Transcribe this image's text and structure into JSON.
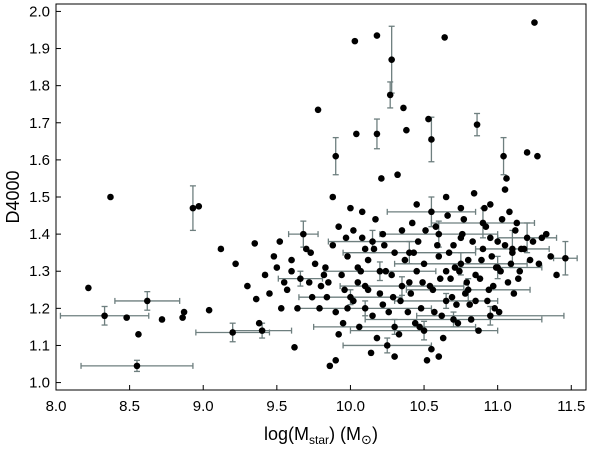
{
  "chart_data": {
    "type": "scatter",
    "title": "",
    "xlabel_main": "log(M",
    "xlabel_sub": "star",
    "xlabel_unit_open": ") (M",
    "xlabel_unit_sun": "⊙",
    "xlabel_unit_close": ")",
    "ylabel": "D4000",
    "xlim": [
      8.0,
      11.6
    ],
    "ylim": [
      0.98,
      2.02
    ],
    "xticks": [
      8.0,
      8.5,
      9.0,
      9.5,
      10.0,
      10.5,
      11.0,
      11.5
    ],
    "xtick_labels": [
      "8.0",
      "8.5",
      "9.0",
      "9.5",
      "10.0",
      "10.5",
      "11.0",
      "11.5"
    ],
    "yticks": [
      1.0,
      1.1,
      1.2,
      1.3,
      1.4,
      1.5,
      1.6,
      1.7,
      1.8,
      1.9,
      2.0
    ],
    "ytick_labels": [
      "1.0",
      "1.1",
      "1.2",
      "1.3",
      "1.4",
      "1.5",
      "1.6",
      "1.7",
      "1.8",
      "1.9",
      "2.0"
    ],
    "grid": false,
    "legend": "none",
    "marker_color": "#000000",
    "errorbar_color": "#6e7f7f",
    "points": [
      {
        "x": 8.22,
        "y": 1.255
      },
      {
        "x": 8.37,
        "y": 1.5
      },
      {
        "x": 8.33,
        "y": 1.18,
        "xerr": 0.3,
        "yerr": 0.025
      },
      {
        "x": 8.62,
        "y": 1.22,
        "xerr": 0.22,
        "yerr": 0.025
      },
      {
        "x": 8.55,
        "y": 1.045,
        "xerr": 0.38,
        "yerr": 0.015
      },
      {
        "x": 8.48,
        "y": 1.175
      },
      {
        "x": 8.56,
        "y": 1.13
      },
      {
        "x": 8.72,
        "y": 1.17
      },
      {
        "x": 8.86,
        "y": 1.175
      },
      {
        "x": 8.87,
        "y": 1.19
      },
      {
        "x": 8.93,
        "y": 1.47,
        "yerr": 0.06
      },
      {
        "x": 8.97,
        "y": 1.475
      },
      {
        "x": 9.04,
        "y": 1.195
      },
      {
        "x": 9.12,
        "y": 1.36
      },
      {
        "x": 9.2,
        "y": 1.135,
        "xerr": 0.25,
        "yerr": 0.025
      },
      {
        "x": 9.22,
        "y": 1.32
      },
      {
        "x": 9.3,
        "y": 1.26
      },
      {
        "x": 9.35,
        "y": 1.375
      },
      {
        "x": 9.36,
        "y": 1.225
      },
      {
        "x": 9.38,
        "y": 1.16
      },
      {
        "x": 9.4,
        "y": 1.14,
        "xerr": 0.2,
        "yerr": 0.02
      },
      {
        "x": 9.42,
        "y": 1.29
      },
      {
        "x": 9.45,
        "y": 1.24
      },
      {
        "x": 9.5,
        "y": 1.31
      },
      {
        "x": 9.52,
        "y": 1.38
      },
      {
        "x": 9.55,
        "y": 1.27
      },
      {
        "x": 9.57,
        "y": 1.25
      },
      {
        "x": 9.6,
        "y": 1.33
      },
      {
        "x": 9.62,
        "y": 1.095
      },
      {
        "x": 9.64,
        "y": 1.2
      },
      {
        "x": 9.66,
        "y": 1.28,
        "xerr": 0.15,
        "yerr": 0.02
      },
      {
        "x": 9.68,
        "y": 1.4,
        "xerr": 0.1,
        "yerr": 0.035
      },
      {
        "x": 9.7,
        "y": 1.36
      },
      {
        "x": 9.72,
        "y": 1.27
      },
      {
        "x": 9.74,
        "y": 1.23
      },
      {
        "x": 9.76,
        "y": 1.32
      },
      {
        "x": 9.78,
        "y": 1.735
      },
      {
        "x": 9.8,
        "y": 1.26
      },
      {
        "x": 9.82,
        "y": 1.29
      },
      {
        "x": 9.84,
        "y": 1.23
      },
      {
        "x": 9.86,
        "y": 1.045
      },
      {
        "x": 9.88,
        "y": 1.5
      },
      {
        "x": 9.9,
        "y": 1.06
      },
      {
        "x": 9.9,
        "y": 1.61,
        "yerr": 0.05
      },
      {
        "x": 9.92,
        "y": 1.42
      },
      {
        "x": 9.94,
        "y": 1.29
      },
      {
        "x": 9.96,
        "y": 1.25
      },
      {
        "x": 9.98,
        "y": 1.2
      },
      {
        "x": 10.0,
        "y": 1.47
      },
      {
        "x": 10.02,
        "y": 1.22
      },
      {
        "x": 10.03,
        "y": 1.92
      },
      {
        "x": 10.04,
        "y": 1.67
      },
      {
        "x": 10.05,
        "y": 1.31
      },
      {
        "x": 10.06,
        "y": 1.15
      },
      {
        "x": 10.08,
        "y": 1.39
      },
      {
        "x": 10.1,
        "y": 1.26
      },
      {
        "x": 10.12,
        "y": 1.33
      },
      {
        "x": 10.14,
        "y": 1.08
      },
      {
        "x": 10.16,
        "y": 1.36
      },
      {
        "x": 10.18,
        "y": 1.935
      },
      {
        "x": 10.18,
        "y": 1.67,
        "yerr": 0.04
      },
      {
        "x": 10.2,
        "y": 1.24
      },
      {
        "x": 10.21,
        "y": 1.55
      },
      {
        "x": 10.22,
        "y": 1.4
      },
      {
        "x": 10.24,
        "y": 1.3
      },
      {
        "x": 10.26,
        "y": 1.19
      },
      {
        "x": 10.27,
        "y": 1.775,
        "yerr": 0.035
      },
      {
        "x": 10.28,
        "y": 1.87,
        "yerr": 0.09
      },
      {
        "x": 10.3,
        "y": 1.35
      },
      {
        "x": 10.32,
        "y": 1.56
      },
      {
        "x": 10.34,
        "y": 1.22
      },
      {
        "x": 10.36,
        "y": 1.74
      },
      {
        "x": 10.38,
        "y": 1.68
      },
      {
        "x": 10.4,
        "y": 1.27
      },
      {
        "x": 10.42,
        "y": 1.43
      },
      {
        "x": 10.44,
        "y": 1.16
      },
      {
        "x": 10.46,
        "y": 1.38
      },
      {
        "x": 10.48,
        "y": 1.2
      },
      {
        "x": 10.5,
        "y": 1.32
      },
      {
        "x": 10.52,
        "y": 1.06
      },
      {
        "x": 10.53,
        "y": 1.71
      },
      {
        "x": 10.55,
        "y": 1.655,
        "yerr": 0.06
      },
      {
        "x": 10.56,
        "y": 1.25
      },
      {
        "x": 10.58,
        "y": 1.42
      },
      {
        "x": 10.6,
        "y": 1.34
      },
      {
        "x": 10.62,
        "y": 1.18
      },
      {
        "x": 10.64,
        "y": 1.93
      },
      {
        "x": 10.66,
        "y": 1.45
      },
      {
        "x": 10.68,
        "y": 1.28
      },
      {
        "x": 10.7,
        "y": 1.37
      },
      {
        "x": 10.72,
        "y": 1.21
      },
      {
        "x": 10.74,
        "y": 1.3
      },
      {
        "x": 10.76,
        "y": 1.4
      },
      {
        "x": 10.78,
        "y": 1.24
      },
      {
        "x": 10.8,
        "y": 1.33
      },
      {
        "x": 10.82,
        "y": 1.17
      },
      {
        "x": 10.84,
        "y": 1.51
      },
      {
        "x": 10.86,
        "y": 1.695,
        "yerr": 0.03
      },
      {
        "x": 10.88,
        "y": 1.28
      },
      {
        "x": 10.9,
        "y": 1.36
      },
      {
        "x": 10.92,
        "y": 1.42
      },
      {
        "x": 10.94,
        "y": 1.25
      },
      {
        "x": 10.96,
        "y": 1.34
      },
      {
        "x": 10.98,
        "y": 1.2
      },
      {
        "x": 11.0,
        "y": 1.38
      },
      {
        "x": 11.02,
        "y": 1.3
      },
      {
        "x": 11.04,
        "y": 1.61,
        "yerr": 0.05
      },
      {
        "x": 11.06,
        "y": 1.55
      },
      {
        "x": 11.08,
        "y": 1.46
      },
      {
        "x": 11.1,
        "y": 1.35
      },
      {
        "x": 11.12,
        "y": 1.41
      },
      {
        "x": 11.14,
        "y": 1.28
      },
      {
        "x": 11.16,
        "y": 1.36
      },
      {
        "x": 11.2,
        "y": 1.62
      },
      {
        "x": 11.22,
        "y": 1.33
      },
      {
        "x": 11.25,
        "y": 1.97
      },
      {
        "x": 11.27,
        "y": 1.61
      },
      {
        "x": 11.3,
        "y": 1.39
      },
      {
        "x": 11.36,
        "y": 1.34
      },
      {
        "x": 11.4,
        "y": 1.29
      },
      {
        "x": 11.46,
        "y": 1.335,
        "xerr": 0.08,
        "yerr": 0.045
      },
      {
        "x": 10.1,
        "y": 1.2,
        "xerr": 0.45,
        "yerr": 0.02
      },
      {
        "x": 10.3,
        "y": 1.15,
        "xerr": 0.55,
        "yerr": 0.02
      },
      {
        "x": 10.5,
        "y": 1.14,
        "xerr": 0.5,
        "yerr": 0.025
      },
      {
        "x": 10.7,
        "y": 1.17,
        "xerr": 0.6,
        "yerr": 0.02
      },
      {
        "x": 10.4,
        "y": 1.35,
        "xerr": 0.45,
        "yerr": 0.03
      },
      {
        "x": 10.6,
        "y": 1.4,
        "xerr": 0.4,
        "yerr": 0.035
      },
      {
        "x": 10.9,
        "y": 1.43,
        "xerr": 0.35,
        "yerr": 0.04
      },
      {
        "x": 11.0,
        "y": 1.31,
        "xerr": 0.3,
        "yerr": 0.03
      },
      {
        "x": 10.8,
        "y": 1.25,
        "xerr": 0.42,
        "yerr": 0.03
      },
      {
        "x": 10.2,
        "y": 1.3,
        "xerr": 0.38,
        "yerr": 0.025
      },
      {
        "x": 10.15,
        "y": 1.38,
        "xerr": 0.3,
        "yerr": 0.03
      },
      {
        "x": 10.65,
        "y": 1.22,
        "xerr": 0.35,
        "yerr": 0.02
      },
      {
        "x": 10.95,
        "y": 1.18,
        "xerr": 0.5,
        "yerr": 0.025
      },
      {
        "x": 11.1,
        "y": 1.36,
        "xerr": 0.25,
        "yerr": 0.05
      },
      {
        "x": 10.55,
        "y": 1.46,
        "xerr": 0.3,
        "yerr": 0.04
      },
      {
        "x": 10.35,
        "y": 1.26,
        "xerr": 0.42,
        "yerr": 0.025
      },
      {
        "x": 10.25,
        "y": 1.1,
        "xerr": 0.3,
        "yerr": 0.02
      },
      {
        "x": 10.0,
        "y": 1.23,
        "xerr": 0.35,
        "yerr": 0.02
      },
      {
        "x": 11.2,
        "y": 1.39,
        "xerr": 0.2,
        "yerr": 0.04
      },
      {
        "x": 10.75,
        "y": 1.32,
        "xerr": 0.45,
        "yerr": 0.03
      },
      {
        "x": 9.95,
        "y": 1.16
      },
      {
        "x": 10.05,
        "y": 1.27
      },
      {
        "x": 10.1,
        "y": 1.36
      },
      {
        "x": 10.15,
        "y": 1.18
      },
      {
        "x": 10.22,
        "y": 1.21
      },
      {
        "x": 10.28,
        "y": 1.29
      },
      {
        "x": 10.33,
        "y": 1.13
      },
      {
        "x": 10.37,
        "y": 1.33
      },
      {
        "x": 10.41,
        "y": 1.24
      },
      {
        "x": 10.45,
        "y": 1.3
      },
      {
        "x": 10.47,
        "y": 1.15
      },
      {
        "x": 10.51,
        "y": 1.41
      },
      {
        "x": 10.54,
        "y": 1.26
      },
      {
        "x": 10.57,
        "y": 1.19
      },
      {
        "x": 10.61,
        "y": 1.28
      },
      {
        "x": 10.63,
        "y": 1.12
      },
      {
        "x": 10.67,
        "y": 1.35
      },
      {
        "x": 10.69,
        "y": 1.23
      },
      {
        "x": 10.71,
        "y": 1.31
      },
      {
        "x": 10.73,
        "y": 1.16
      },
      {
        "x": 10.77,
        "y": 1.44
      },
      {
        "x": 10.79,
        "y": 1.27
      },
      {
        "x": 10.81,
        "y": 1.21
      },
      {
        "x": 10.83,
        "y": 1.38
      },
      {
        "x": 10.85,
        "y": 1.29
      },
      {
        "x": 10.87,
        "y": 1.14
      },
      {
        "x": 10.89,
        "y": 1.33
      },
      {
        "x": 10.91,
        "y": 1.47
      },
      {
        "x": 10.93,
        "y": 1.22
      },
      {
        "x": 10.95,
        "y": 1.39
      },
      {
        "x": 10.97,
        "y": 1.26
      },
      {
        "x": 10.99,
        "y": 1.31
      },
      {
        "x": 11.01,
        "y": 1.19
      },
      {
        "x": 11.03,
        "y": 1.44
      },
      {
        "x": 11.05,
        "y": 1.37
      },
      {
        "x": 11.07,
        "y": 1.27
      },
      {
        "x": 11.09,
        "y": 1.32
      },
      {
        "x": 11.11,
        "y": 1.24
      },
      {
        "x": 11.13,
        "y": 1.43
      },
      {
        "x": 11.15,
        "y": 1.3
      },
      {
        "x": 11.18,
        "y": 1.36
      },
      {
        "x": 11.24,
        "y": 1.38
      },
      {
        "x": 11.28,
        "y": 1.32
      },
      {
        "x": 11.33,
        "y": 1.4
      },
      {
        "x": 9.98,
        "y": 1.34
      },
      {
        "x": 10.02,
        "y": 1.41
      },
      {
        "x": 10.07,
        "y": 1.3
      },
      {
        "x": 10.12,
        "y": 1.25
      },
      {
        "x": 10.17,
        "y": 1.44
      },
      {
        "x": 10.23,
        "y": 1.37
      },
      {
        "x": 10.29,
        "y": 1.23
      },
      {
        "x": 10.35,
        "y": 1.41
      },
      {
        "x": 10.39,
        "y": 1.19
      },
      {
        "x": 10.43,
        "y": 1.35
      },
      {
        "x": 10.49,
        "y": 1.27
      },
      {
        "x": 10.59,
        "y": 1.37
      },
      {
        "x": 10.65,
        "y": 1.3
      },
      {
        "x": 10.75,
        "y": 1.39
      },
      {
        "x": 10.85,
        "y": 1.22
      },
      {
        "x": 10.55,
        "y": 1.09
      },
      {
        "x": 10.3,
        "y": 1.07
      },
      {
        "x": 10.18,
        "y": 1.12
      },
      {
        "x": 10.6,
        "y": 1.07
      },
      {
        "x": 9.92,
        "y": 1.13
      },
      {
        "x": 9.88,
        "y": 1.37
      },
      {
        "x": 9.83,
        "y": 1.31
      },
      {
        "x": 10.08,
        "y": 1.46
      },
      {
        "x": 10.45,
        "y": 1.48
      },
      {
        "x": 10.65,
        "y": 1.5
      },
      {
        "x": 10.75,
        "y": 1.47
      },
      {
        "x": 10.95,
        "y": 1.48
      },
      {
        "x": 11.05,
        "y": 1.52
      },
      {
        "x": 9.6,
        "y": 1.3
      },
      {
        "x": 9.53,
        "y": 1.2
      },
      {
        "x": 9.48,
        "y": 1.34
      },
      {
        "x": 9.73,
        "y": 1.35
      },
      {
        "x": 9.79,
        "y": 1.2
      },
      {
        "x": 9.85,
        "y": 1.27
      },
      {
        "x": 9.9,
        "y": 1.19
      },
      {
        "x": 9.97,
        "y": 1.39
      }
    ]
  }
}
